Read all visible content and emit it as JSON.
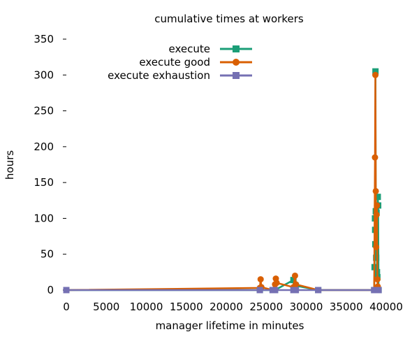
{
  "chart_data": {
    "type": "line",
    "title": "cumulative times at workers",
    "xlabel": "manager lifetime in minutes",
    "ylabel": "hours",
    "xlim": [
      0,
      40000
    ],
    "ylim": [
      0,
      350
    ],
    "x_ticks": [
      0,
      5000,
      10000,
      15000,
      20000,
      25000,
      30000,
      35000,
      40000
    ],
    "y_ticks": [
      0,
      50,
      100,
      150,
      200,
      250,
      300,
      350
    ],
    "grid": false,
    "legend_position": "top-center",
    "series": [
      {
        "name": "execute",
        "color": "#1b9e77",
        "marker": "square",
        "points": [
          [
            0,
            0
          ],
          [
            24200,
            0
          ],
          [
            25800,
            0
          ],
          [
            26100,
            0
          ],
          [
            28400,
            14
          ],
          [
            28700,
            6
          ],
          [
            31500,
            0
          ],
          [
            38500,
            0
          ],
          [
            38550,
            32
          ],
          [
            38600,
            100
          ],
          [
            38620,
            84
          ],
          [
            38640,
            64
          ],
          [
            38660,
            305
          ],
          [
            38700,
            110
          ],
          [
            38750,
            45
          ],
          [
            38800,
            108
          ],
          [
            38850,
            25
          ],
          [
            38900,
            18
          ],
          [
            38950,
            130
          ],
          [
            39000,
            118
          ],
          [
            39050,
            0
          ]
        ]
      },
      {
        "name": "execute good",
        "color": "#d95f02",
        "marker": "circle",
        "points": [
          [
            0,
            0
          ],
          [
            24200,
            3
          ],
          [
            24300,
            15
          ],
          [
            24400,
            4
          ],
          [
            25800,
            0
          ],
          [
            26100,
            8
          ],
          [
            26200,
            16
          ],
          [
            26300,
            10
          ],
          [
            28400,
            4
          ],
          [
            28600,
            20
          ],
          [
            28700,
            8
          ],
          [
            31500,
            0
          ],
          [
            38500,
            0
          ],
          [
            38600,
            185
          ],
          [
            38650,
            300
          ],
          [
            38700,
            138
          ],
          [
            38750,
            60
          ],
          [
            38800,
            105
          ],
          [
            38850,
            118
          ],
          [
            38900,
            15
          ],
          [
            38950,
            5
          ]
        ]
      },
      {
        "name": "execute exhaustion",
        "color": "#7570b3",
        "marker": "square",
        "points": [
          [
            0,
            0
          ],
          [
            24200,
            0
          ],
          [
            25800,
            0
          ],
          [
            26100,
            0
          ],
          [
            28400,
            0
          ],
          [
            28700,
            0
          ],
          [
            31500,
            0
          ],
          [
            38500,
            0
          ],
          [
            38700,
            0
          ],
          [
            38900,
            0
          ],
          [
            39050,
            0
          ]
        ]
      }
    ]
  }
}
